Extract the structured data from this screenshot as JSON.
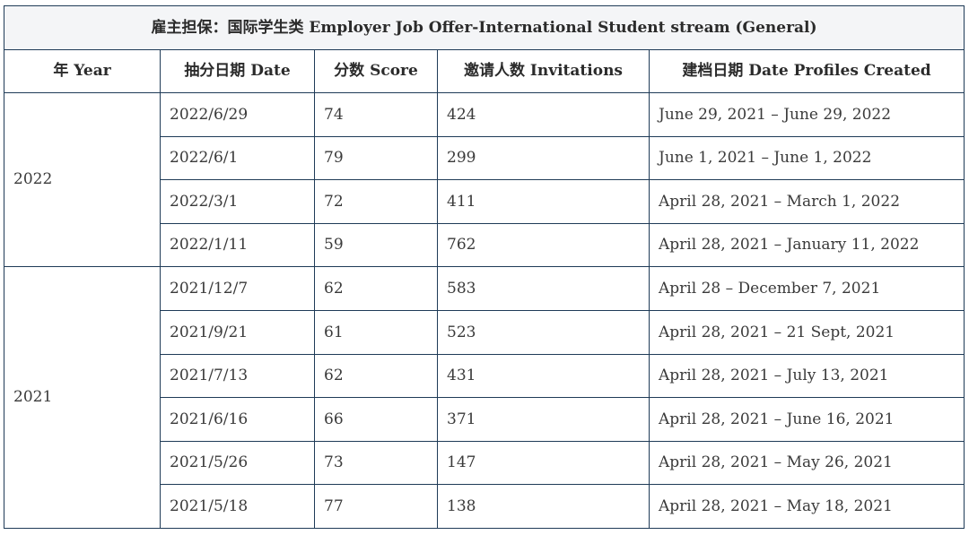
{
  "table": {
    "caption": "雇主担保：国际学生类 Employer Job Offer-International Student stream (General)",
    "columns": [
      "年 Year",
      "抽分日期 Date",
      "分数 Score",
      "邀请人数 Invitations",
      "建档日期 Date Profiles Created"
    ],
    "groups": [
      {
        "year": "2022",
        "rows": [
          {
            "date": "2022/6/29",
            "score": "74",
            "invitations": "424",
            "profiles": "June 29, 2021 – June 29, 2022"
          },
          {
            "date": "2022/6/1",
            "score": "79",
            "invitations": "299",
            "profiles": "June 1, 2021 – June 1, 2022"
          },
          {
            "date": "2022/3/1",
            "score": "72",
            "invitations": "411",
            "profiles": "April 28, 2021 – March 1, 2022"
          },
          {
            "date": "2022/1/11",
            "score": "59",
            "invitations": "762",
            "profiles": "April 28, 2021 – January 11, 2022"
          }
        ]
      },
      {
        "year": "2021",
        "rows": [
          {
            "date": "2021/12/7",
            "score": "62",
            "invitations": "583",
            "profiles": "April 28 – December 7, 2021"
          },
          {
            "date": "2021/9/21",
            "score": "61",
            "invitations": "523",
            "profiles": "April 28, 2021 – 21 Sept, 2021"
          },
          {
            "date": "2021/7/13",
            "score": "62",
            "invitations": "431",
            "profiles": "April 28, 2021 – July 13, 2021"
          },
          {
            "date": "2021/6/16",
            "score": "66",
            "invitations": "371",
            "profiles": "April 28, 2021 – June 16, 2021"
          },
          {
            "date": "2021/5/26",
            "score": "73",
            "invitations": "147",
            "profiles": "April 28, 2021 – May 26, 2021"
          },
          {
            "date": "2021/5/18",
            "score": "77",
            "invitations": "138",
            "profiles": "April 28, 2021 – May 18, 2021"
          }
        ]
      }
    ]
  }
}
